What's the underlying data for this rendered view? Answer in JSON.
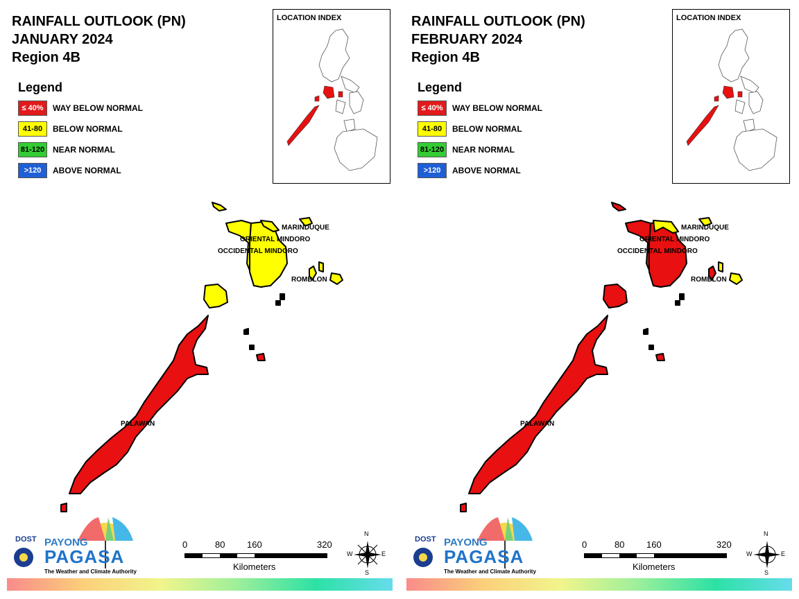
{
  "panels": [
    {
      "title_line1": "RAINFALL OUTLOOK (PN)",
      "title_line2": "JANUARY 2024",
      "title_line3": "Region 4B",
      "provinces": {
        "palawan": "#e81010",
        "oriental_mindoro": "#ffff00",
        "occidental_mindoro": "#ffff00",
        "mindoro_west_ne": "#ffff00",
        "marinduque": "#ffff00",
        "romblon": "#ffff00",
        "calamian": "#ffff00",
        "north_islet": "#ffff00",
        "romblon_sw": "#ffff00"
      }
    },
    {
      "title_line1": "RAINFALL OUTLOOK (PN)",
      "title_line2": "FEBRUARY 2024",
      "title_line3": "Region 4B",
      "provinces": {
        "palawan": "#e81010",
        "oriental_mindoro": "#e81010",
        "occidental_mindoro": "#e81010",
        "mindoro_west_ne": "#ffff00",
        "marinduque": "#ffff00",
        "romblon": "#ffff00",
        "calamian": "#e81010",
        "north_islet": "#e81010",
        "romblon_sw": "#e81010"
      }
    }
  ],
  "legend": {
    "heading": "Legend",
    "items": [
      {
        "range": "≤ 40%",
        "label": "WAY BELOW NORMAL",
        "color": "#e31a1c",
        "text_color": "#ffffff"
      },
      {
        "range": "41-80",
        "label": "BELOW NORMAL",
        "color": "#ffff00",
        "text_color": "#000000"
      },
      {
        "range": "81-120",
        "label": "NEAR NORMAL",
        "color": "#33cc33",
        "text_color": "#000000"
      },
      {
        "range": ">120",
        "label": "ABOVE NORMAL",
        "color": "#1f5fd6",
        "text_color": "#ffffff"
      }
    ]
  },
  "location_index": {
    "title": "LOCATION INDEX"
  },
  "labels": {
    "marinduque": "MARINDUQUE",
    "oriental_mindoro": "ORIENTAL MINDORO",
    "occidental_mindoro": "OCCIDENTAL MINDORO",
    "romblon": "ROMBLON",
    "palawan": "PALAWAN"
  },
  "scale": {
    "ticks": [
      "0",
      "80",
      "160",
      "320"
    ],
    "unit": "Kilometers"
  },
  "compass": {
    "n": "N",
    "s": "S",
    "e": "E",
    "w": "W"
  },
  "logo": {
    "dost": "DOST",
    "payong": "PAYONG",
    "pagasa": "PAGASA",
    "tagline": "The Weather and Climate Authority"
  },
  "colors": {
    "outline": "#000000",
    "index_fill": "#e81010"
  }
}
